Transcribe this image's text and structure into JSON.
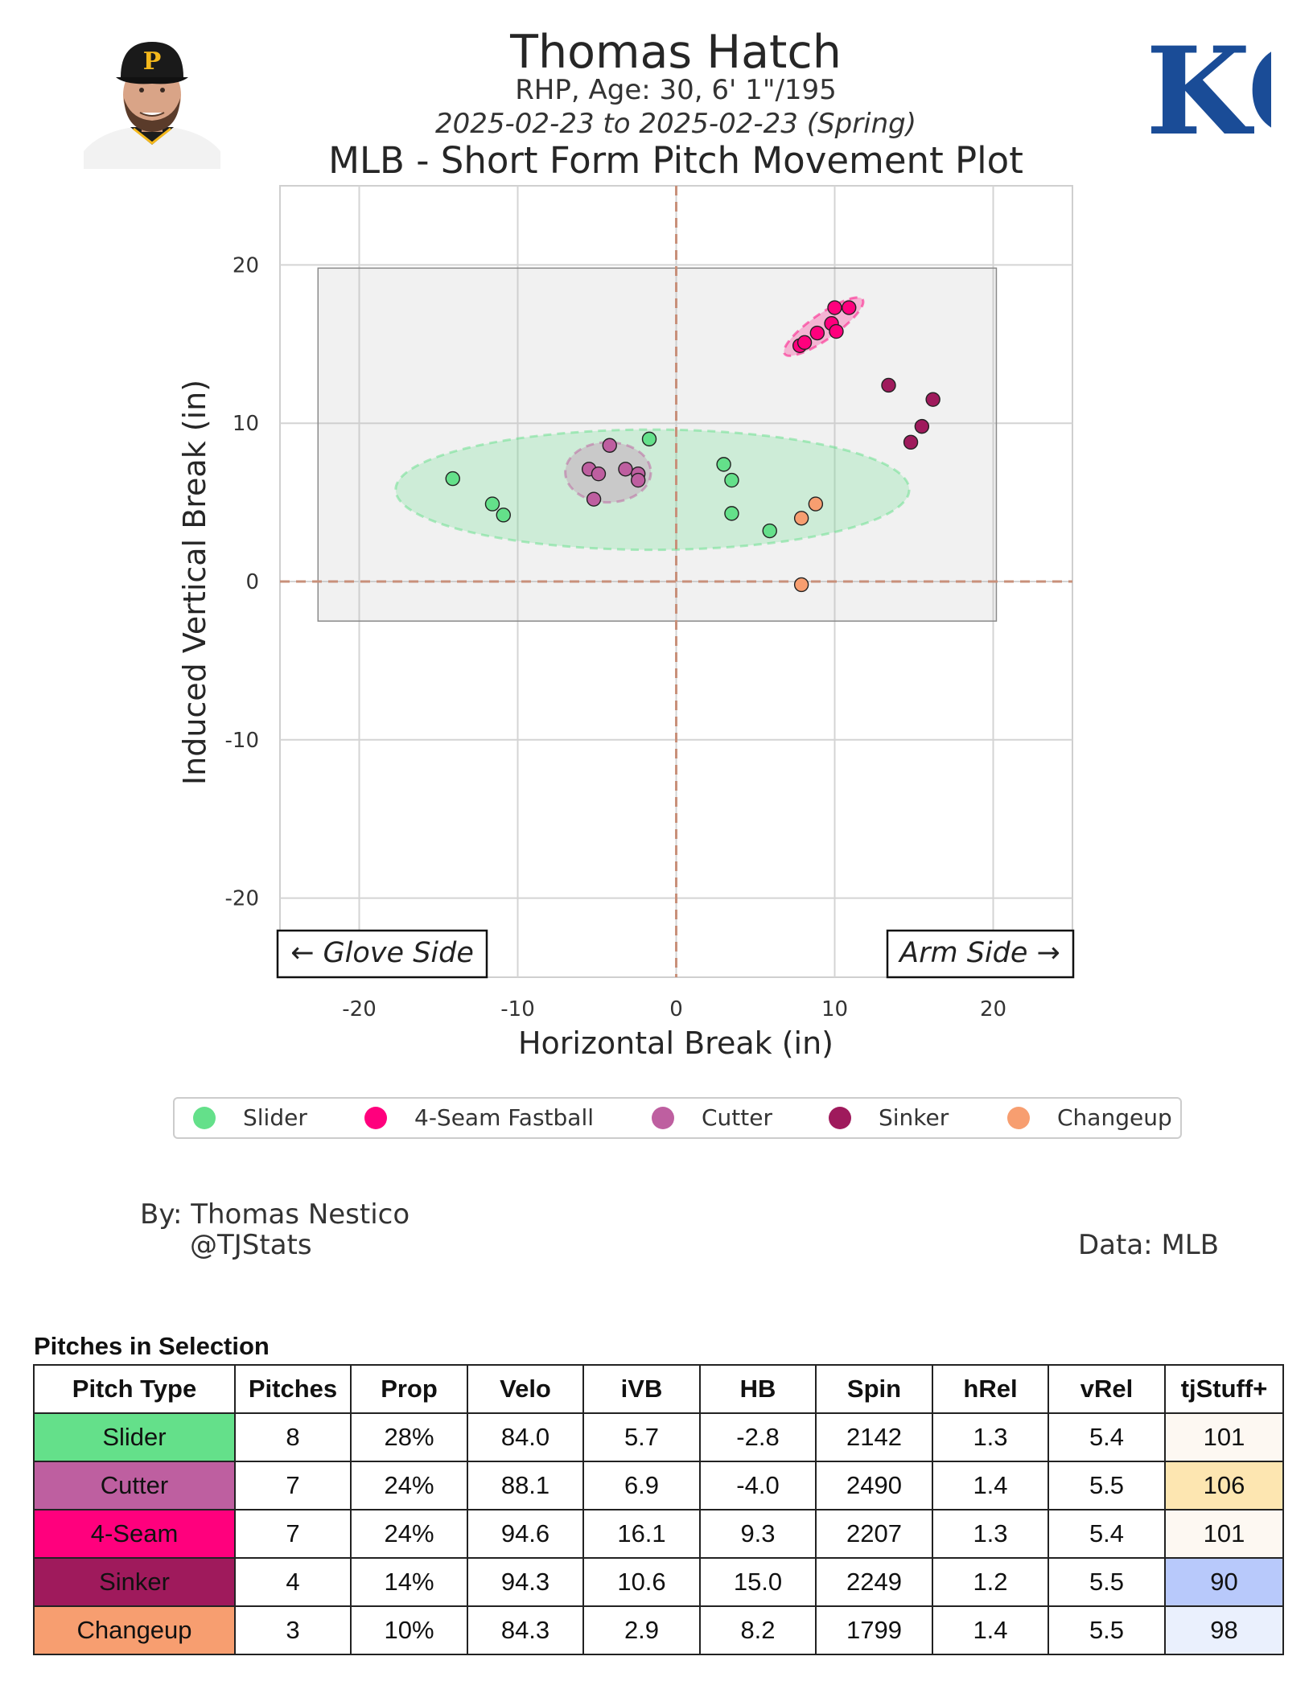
{
  "header": {
    "player_name": "Thomas Hatch",
    "bio": "RHP, Age: 30, 6' 1\"/195",
    "date_range": "2025-02-23 to 2025-02-23 (Spring)",
    "plot_title": "MLB - Short Form Pitch Movement Plot",
    "team_logo_text": "KC"
  },
  "chart_data": {
    "type": "scatter",
    "title": "MLB - Short Form Pitch Movement Plot",
    "xlabel": "Horizontal Break (in)",
    "ylabel": "Induced Vertical Break (in)",
    "xlim": [
      -25,
      25
    ],
    "ylim": [
      -25,
      25
    ],
    "xticks": [
      -20,
      -10,
      0,
      10,
      20
    ],
    "yticks": [
      -20,
      -10,
      0,
      10,
      20
    ],
    "tick_labels_x": [
      "-20",
      "-10",
      "0",
      "10",
      "20"
    ],
    "tick_labels_y": [
      "-20",
      "-10",
      "0",
      "10",
      "20"
    ],
    "grid": true,
    "legend_position": "bottom-center",
    "annotations": {
      "glove_side": "← Glove Side",
      "arm_side": "Arm Side →"
    },
    "typical_range_box": {
      "x": [
        -22.6,
        20.2
      ],
      "y": [
        -2.5,
        19.8
      ]
    },
    "series": [
      {
        "name": "Slider",
        "color": "#64e08a",
        "ellipse": {
          "cx": -1.5,
          "cy": 5.8,
          "rx": 16.2,
          "ry": 3.8
        },
        "points": [
          [
            -14.1,
            6.5
          ],
          [
            -11.6,
            4.9
          ],
          [
            -10.9,
            4.2
          ],
          [
            -1.7,
            9.0
          ],
          [
            3.0,
            7.4
          ],
          [
            3.5,
            6.4
          ],
          [
            3.5,
            4.3
          ],
          [
            5.9,
            3.2
          ]
        ]
      },
      {
        "name": "4-Seam Fastball",
        "color": "#ff007d",
        "ellipse": {
          "cx": 9.3,
          "cy": 16.1,
          "rx": 3.0,
          "ry": 0.8,
          "angle": -35
        },
        "points": [
          [
            7.8,
            14.9
          ],
          [
            8.1,
            15.1
          ],
          [
            8.9,
            15.7
          ],
          [
            9.8,
            16.3
          ],
          [
            10.1,
            15.8
          ],
          [
            10.0,
            17.3
          ],
          [
            10.9,
            17.3
          ]
        ]
      },
      {
        "name": "Cutter",
        "color": "#be5fa0",
        "ellipse": {
          "cx": -4.3,
          "cy": 6.9,
          "rx": 2.7,
          "ry": 1.9
        },
        "points": [
          [
            -4.2,
            8.6
          ],
          [
            -5.5,
            7.1
          ],
          [
            -4.9,
            6.8
          ],
          [
            -3.2,
            7.1
          ],
          [
            -2.4,
            6.8
          ],
          [
            -2.4,
            6.4
          ],
          [
            -5.2,
            5.2
          ]
        ]
      },
      {
        "name": "Sinker",
        "color": "#9f1a5c",
        "points": [
          [
            13.4,
            12.4
          ],
          [
            16.2,
            11.5
          ],
          [
            15.5,
            9.8
          ],
          [
            14.8,
            8.8
          ]
        ]
      },
      {
        "name": "Changeup",
        "color": "#f79e70",
        "points": [
          [
            8.8,
            4.9
          ],
          [
            7.9,
            4.0
          ],
          [
            7.9,
            -0.2
          ]
        ]
      }
    ]
  },
  "credits": {
    "author": "By: Thomas Nestico",
    "handle": "@TJStats",
    "data_source": "Data: MLB"
  },
  "table": {
    "caption": "Pitches in Selection",
    "columns": [
      "Pitch Type",
      "Pitches",
      "Prop",
      "Velo",
      "iVB",
      "HB",
      "Spin",
      "hRel",
      "vRel",
      "tjStuff+"
    ],
    "rows": [
      {
        "cells": [
          "Slider",
          "8",
          "28%",
          "84.0",
          "5.7",
          "-2.8",
          "2142",
          "1.3",
          "5.4",
          "101"
        ],
        "type_color": "#64e08a",
        "stuff_color": "#fdf8f2"
      },
      {
        "cells": [
          "Cutter",
          "7",
          "24%",
          "88.1",
          "6.9",
          "-4.0",
          "2490",
          "1.4",
          "5.5",
          "106"
        ],
        "type_color": "#be5fa0",
        "stuff_color": "#fde6b1"
      },
      {
        "cells": [
          "4-Seam",
          "7",
          "24%",
          "94.6",
          "16.1",
          "9.3",
          "2207",
          "1.3",
          "5.4",
          "101"
        ],
        "type_color": "#ff007d",
        "stuff_color": "#fdf8f2"
      },
      {
        "cells": [
          "Sinker",
          "4",
          "14%",
          "94.3",
          "10.6",
          "15.0",
          "2249",
          "1.2",
          "5.5",
          "90"
        ],
        "type_color": "#9f1a5c",
        "stuff_color": "#b8c9fb"
      },
      {
        "cells": [
          "Changeup",
          "3",
          "10%",
          "84.3",
          "2.9",
          "8.2",
          "1799",
          "1.4",
          "5.5",
          "98"
        ],
        "type_color": "#f79e70",
        "stuff_color": "#eaf0fd"
      }
    ]
  }
}
